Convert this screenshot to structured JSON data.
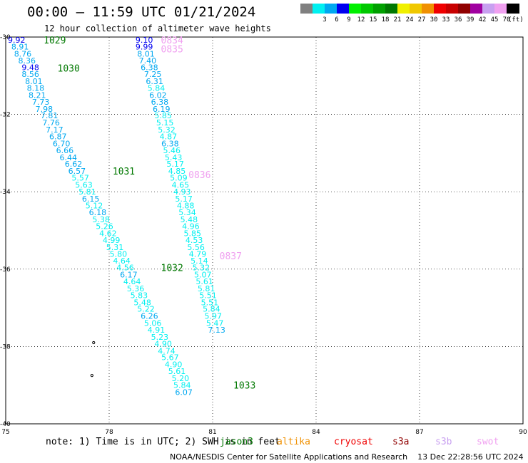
{
  "header": {
    "title": "00:00 – 11:59 UTC 01/21/2024",
    "subtitle": "12 hour collection of altimeter wave heights"
  },
  "legend": {
    "unit": "(ft)",
    "items": [
      {
        "label": "",
        "color": "#808080"
      },
      {
        "label": "3",
        "color": "#00f0f0"
      },
      {
        "label": "6",
        "color": "#00a8f0"
      },
      {
        "label": "9",
        "color": "#0000f0"
      },
      {
        "label": "12",
        "color": "#00f000"
      },
      {
        "label": "15",
        "color": "#00c800"
      },
      {
        "label": "18",
        "color": "#00a000"
      },
      {
        "label": "21",
        "color": "#007800"
      },
      {
        "label": "24",
        "color": "#f0f000"
      },
      {
        "label": "27",
        "color": "#f0c800"
      },
      {
        "label": "30",
        "color": "#f09000"
      },
      {
        "label": "33",
        "color": "#f00000"
      },
      {
        "label": "36",
        "color": "#c80000"
      },
      {
        "label": "39",
        "color": "#900000"
      },
      {
        "label": "42",
        "color": "#a000a0"
      },
      {
        "label": "45",
        "color": "#c8a0f0"
      },
      {
        "label": "70",
        "color": "#f0a0f0"
      },
      {
        "label": "",
        "color": "#000000"
      }
    ]
  },
  "footer": {
    "note": "note: 1) Time is in UTC; 2) SWH is in feet",
    "satellites": [
      {
        "name": "jason3",
        "color": "#007800"
      },
      {
        "name": "altika",
        "color": "#f09000"
      },
      {
        "name": "cryosat",
        "color": "#f00000"
      },
      {
        "name": "s3a",
        "color": "#900000"
      },
      {
        "name": "s3b",
        "color": "#c8a0f0"
      },
      {
        "name": "swot",
        "color": "#f0a0f0"
      }
    ],
    "credit": "NOAA/NESDIS Center for Satellite Applications and Research",
    "generated": "13 Dec 22:28:56 UTC 2024"
  },
  "chart_data": {
    "type": "scatter",
    "xlabel": "",
    "ylabel": "",
    "xlim": [
      75,
      90
    ],
    "ylim": [
      -40,
      -30
    ],
    "xticks": [
      "75",
      "78",
      "81",
      "84",
      "87",
      "90"
    ],
    "yticks": [
      "-30",
      "-32",
      "-34",
      "-36",
      "-38",
      "-40"
    ],
    "grid": true,
    "track_a": [
      {
        "lat": -30.07,
        "lon": 75.0,
        "value": "9.92",
        "color": "#0000f0"
      },
      {
        "lat": -30.25,
        "lon": 75.1,
        "value": "8.91",
        "color": "#00a8f0"
      },
      {
        "lat": -30.43,
        "lon": 75.18,
        "value": "8.76",
        "color": "#00a8f0"
      },
      {
        "lat": -30.61,
        "lon": 75.3,
        "value": "8.36",
        "color": "#00a8f0"
      },
      {
        "lat": -30.78,
        "lon": 75.4,
        "value": "9.48",
        "color": "#0000f0"
      },
      {
        "lat": -30.96,
        "lon": 75.4,
        "value": "8.56",
        "color": "#00a8f0"
      },
      {
        "lat": -31.14,
        "lon": 75.5,
        "value": "8.01",
        "color": "#00a8f0"
      },
      {
        "lat": -31.32,
        "lon": 75.55,
        "value": "8.18",
        "color": "#00a8f0"
      },
      {
        "lat": -31.5,
        "lon": 75.6,
        "value": "8.21",
        "color": "#00a8f0"
      },
      {
        "lat": -31.68,
        "lon": 75.7,
        "value": "7.73",
        "color": "#00a8f0"
      },
      {
        "lat": -31.86,
        "lon": 75.8,
        "value": "7.98",
        "color": "#00a8f0"
      },
      {
        "lat": -32.03,
        "lon": 75.95,
        "value": "7.81",
        "color": "#00a8f0"
      },
      {
        "lat": -32.21,
        "lon": 76.0,
        "value": "7.76",
        "color": "#00a8f0"
      },
      {
        "lat": -32.39,
        "lon": 76.1,
        "value": "7.17",
        "color": "#00a8f0"
      },
      {
        "lat": -32.57,
        "lon": 76.2,
        "value": "6.87",
        "color": "#00a8f0"
      },
      {
        "lat": -32.75,
        "lon": 76.3,
        "value": "6.70",
        "color": "#00a8f0"
      },
      {
        "lat": -32.93,
        "lon": 76.4,
        "value": "6.66",
        "color": "#00a8f0"
      },
      {
        "lat": -33.11,
        "lon": 76.5,
        "value": "6.44",
        "color": "#00a8f0"
      },
      {
        "lat": -33.28,
        "lon": 76.65,
        "value": "6.62",
        "color": "#00a8f0"
      },
      {
        "lat": -33.46,
        "lon": 76.75,
        "value": "6.57",
        "color": "#00a8f0"
      },
      {
        "lat": -33.64,
        "lon": 76.85,
        "value": "5.57",
        "color": "#00f0f0"
      },
      {
        "lat": -33.82,
        "lon": 76.95,
        "value": "5.63",
        "color": "#00f0f0"
      },
      {
        "lat": -34.0,
        "lon": 77.05,
        "value": "5.81",
        "color": "#00f0f0"
      },
      {
        "lat": -34.18,
        "lon": 77.15,
        "value": "6.15",
        "color": "#00a8f0"
      },
      {
        "lat": -34.36,
        "lon": 77.25,
        "value": "5.12",
        "color": "#00f0f0"
      },
      {
        "lat": -34.53,
        "lon": 77.35,
        "value": "6.18",
        "color": "#00a8f0"
      },
      {
        "lat": -34.71,
        "lon": 77.45,
        "value": "5.38",
        "color": "#00f0f0"
      },
      {
        "lat": -34.89,
        "lon": 77.55,
        "value": "5.26",
        "color": "#00f0f0"
      },
      {
        "lat": -35.07,
        "lon": 77.65,
        "value": "4.62",
        "color": "#00f0f0"
      },
      {
        "lat": -35.25,
        "lon": 77.75,
        "value": "4.99",
        "color": "#00f0f0"
      },
      {
        "lat": -35.43,
        "lon": 77.85,
        "value": "5.31",
        "color": "#00f0f0"
      },
      {
        "lat": -35.61,
        "lon": 77.95,
        "value": "5.80",
        "color": "#00f0f0"
      },
      {
        "lat": -35.78,
        "lon": 78.05,
        "value": "4.64",
        "color": "#00f0f0"
      },
      {
        "lat": -35.96,
        "lon": 78.15,
        "value": "4.56",
        "color": "#00f0f0"
      },
      {
        "lat": -36.14,
        "lon": 78.25,
        "value": "6.17",
        "color": "#00a8f0"
      },
      {
        "lat": -36.32,
        "lon": 78.35,
        "value": "4.64",
        "color": "#00f0f0"
      },
      {
        "lat": -36.5,
        "lon": 78.45,
        "value": "5.36",
        "color": "#00f0f0"
      },
      {
        "lat": -36.68,
        "lon": 78.55,
        "value": "5.83",
        "color": "#00f0f0"
      },
      {
        "lat": -36.86,
        "lon": 78.65,
        "value": "5.48",
        "color": "#00f0f0"
      },
      {
        "lat": -37.03,
        "lon": 78.75,
        "value": "5.22",
        "color": "#00f0f0"
      },
      {
        "lat": -37.21,
        "lon": 78.85,
        "value": "6.26",
        "color": "#00a8f0"
      },
      {
        "lat": -37.39,
        "lon": 78.95,
        "value": "5.06",
        "color": "#00f0f0"
      },
      {
        "lat": -37.57,
        "lon": 79.05,
        "value": "4.91",
        "color": "#00f0f0"
      },
      {
        "lat": -37.75,
        "lon": 79.15,
        "value": "5.23",
        "color": "#00f0f0"
      },
      {
        "lat": -37.93,
        "lon": 79.25,
        "value": "4.90",
        "color": "#00f0f0"
      },
      {
        "lat": -38.11,
        "lon": 79.35,
        "value": "4.74",
        "color": "#00f0f0"
      },
      {
        "lat": -38.28,
        "lon": 79.45,
        "value": "5.67",
        "color": "#00f0f0"
      },
      {
        "lat": -38.46,
        "lon": 79.55,
        "value": "4.90",
        "color": "#00f0f0"
      },
      {
        "lat": -38.64,
        "lon": 79.65,
        "value": "5.61",
        "color": "#00f0f0"
      },
      {
        "lat": -38.82,
        "lon": 79.75,
        "value": "5.20",
        "color": "#00f0f0"
      },
      {
        "lat": -39.0,
        "lon": 79.8,
        "value": "5.84",
        "color": "#00f0f0"
      },
      {
        "lat": -39.18,
        "lon": 79.85,
        "value": "6.07",
        "color": "#00a8f0"
      }
    ],
    "track_b": [
      {
        "lat": -30.07,
        "lon": 78.7,
        "value": "9.10",
        "color": "#0000f0"
      },
      {
        "lat": -30.25,
        "lon": 78.7,
        "value": "9.99",
        "color": "#0000f0"
      },
      {
        "lat": -30.43,
        "lon": 78.75,
        "value": "8.01",
        "color": "#00a8f0"
      },
      {
        "lat": -30.61,
        "lon": 78.8,
        "value": "7.40",
        "color": "#00a8f0"
      },
      {
        "lat": -30.78,
        "lon": 78.85,
        "value": "6.38",
        "color": "#00a8f0"
      },
      {
        "lat": -30.96,
        "lon": 78.95,
        "value": "7.25",
        "color": "#00a8f0"
      },
      {
        "lat": -31.14,
        "lon": 79.0,
        "value": "6.31",
        "color": "#00a8f0"
      },
      {
        "lat": -31.32,
        "lon": 79.05,
        "value": "5.84",
        "color": "#00f0f0"
      },
      {
        "lat": -31.5,
        "lon": 79.1,
        "value": "6.02",
        "color": "#00a8f0"
      },
      {
        "lat": -31.68,
        "lon": 79.15,
        "value": "6.38",
        "color": "#00a8f0"
      },
      {
        "lat": -31.86,
        "lon": 79.2,
        "value": "6.19",
        "color": "#00a8f0"
      },
      {
        "lat": -32.03,
        "lon": 79.25,
        "value": "5.85",
        "color": "#00f0f0"
      },
      {
        "lat": -32.21,
        "lon": 79.3,
        "value": "5.15",
        "color": "#00f0f0"
      },
      {
        "lat": -32.39,
        "lon": 79.35,
        "value": "5.32",
        "color": "#00f0f0"
      },
      {
        "lat": -32.57,
        "lon": 79.4,
        "value": "4.87",
        "color": "#00f0f0"
      },
      {
        "lat": -32.75,
        "lon": 79.45,
        "value": "6.38",
        "color": "#00a8f0"
      },
      {
        "lat": -32.93,
        "lon": 79.5,
        "value": "5.46",
        "color": "#00f0f0"
      },
      {
        "lat": -33.11,
        "lon": 79.55,
        "value": "5.43",
        "color": "#00f0f0"
      },
      {
        "lat": -33.28,
        "lon": 79.6,
        "value": "5.17",
        "color": "#00f0f0"
      },
      {
        "lat": -33.46,
        "lon": 79.65,
        "value": "4.85",
        "color": "#00f0f0"
      },
      {
        "lat": -33.64,
        "lon": 79.7,
        "value": "5.09",
        "color": "#00f0f0"
      },
      {
        "lat": -33.82,
        "lon": 79.75,
        "value": "4.65",
        "color": "#00f0f0"
      },
      {
        "lat": -34.0,
        "lon": 79.8,
        "value": "4.93",
        "color": "#00f0f0"
      },
      {
        "lat": -34.18,
        "lon": 79.85,
        "value": "5.17",
        "color": "#00f0f0"
      },
      {
        "lat": -34.36,
        "lon": 79.9,
        "value": "4.88",
        "color": "#00f0f0"
      },
      {
        "lat": -34.53,
        "lon": 79.95,
        "value": "5.34",
        "color": "#00f0f0"
      },
      {
        "lat": -34.71,
        "lon": 80.0,
        "value": "5.48",
        "color": "#00f0f0"
      },
      {
        "lat": -34.89,
        "lon": 80.05,
        "value": "4.96",
        "color": "#00f0f0"
      },
      {
        "lat": -35.07,
        "lon": 80.1,
        "value": "5.85",
        "color": "#00f0f0"
      },
      {
        "lat": -35.25,
        "lon": 80.15,
        "value": "4.53",
        "color": "#00f0f0"
      },
      {
        "lat": -35.43,
        "lon": 80.2,
        "value": "5.56",
        "color": "#00f0f0"
      },
      {
        "lat": -35.61,
        "lon": 80.25,
        "value": "4.79",
        "color": "#00f0f0"
      },
      {
        "lat": -35.78,
        "lon": 80.3,
        "value": "5.14",
        "color": "#00f0f0"
      },
      {
        "lat": -35.96,
        "lon": 80.35,
        "value": "5.32",
        "color": "#00f0f0"
      },
      {
        "lat": -36.14,
        "lon": 80.4,
        "value": "5.07",
        "color": "#00f0f0"
      },
      {
        "lat": -36.32,
        "lon": 80.45,
        "value": "5.61",
        "color": "#00f0f0"
      },
      {
        "lat": -36.5,
        "lon": 80.5,
        "value": "5.81",
        "color": "#00f0f0"
      },
      {
        "lat": -36.68,
        "lon": 80.55,
        "value": "5.51",
        "color": "#00f0f0"
      },
      {
        "lat": -36.86,
        "lon": 80.6,
        "value": "5.51",
        "color": "#00f0f0"
      },
      {
        "lat": -37.03,
        "lon": 80.65,
        "value": "5.84",
        "color": "#00f0f0"
      },
      {
        "lat": -37.21,
        "lon": 80.7,
        "value": "5.97",
        "color": "#00f0f0"
      },
      {
        "lat": -37.39,
        "lon": 80.75,
        "value": "5.47",
        "color": "#00f0f0"
      },
      {
        "lat": -37.57,
        "lon": 80.8,
        "value": "7.13",
        "color": "#00a8f0"
      }
    ],
    "time_labels": [
      {
        "text": "1029",
        "lat": -30.07,
        "lon": 76.1,
        "color": "#007800"
      },
      {
        "text": "1030",
        "lat": -30.8,
        "lon": 76.5,
        "color": "#007800"
      },
      {
        "text": "1031",
        "lat": -33.46,
        "lon": 78.1,
        "color": "#007800"
      },
      {
        "text": "1032",
        "lat": -35.96,
        "lon": 79.5,
        "color": "#007800"
      },
      {
        "text": "1033",
        "lat": -39.0,
        "lon": 81.6,
        "color": "#007800"
      },
      {
        "text": "0834",
        "lat": -30.07,
        "lon": 79.5,
        "color": "#f0a0f0"
      },
      {
        "text": "0835",
        "lat": -30.3,
        "lon": 79.5,
        "color": "#f0a0f0"
      },
      {
        "text": "0836",
        "lat": -33.55,
        "lon": 80.3,
        "color": "#f0a0f0"
      },
      {
        "text": "0837",
        "lat": -35.65,
        "lon": 81.2,
        "color": "#f0a0f0"
      }
    ],
    "markers": [
      {
        "lat": -37.9,
        "lon": 77.55
      },
      {
        "lat": -38.75,
        "lon": 77.5
      }
    ]
  }
}
